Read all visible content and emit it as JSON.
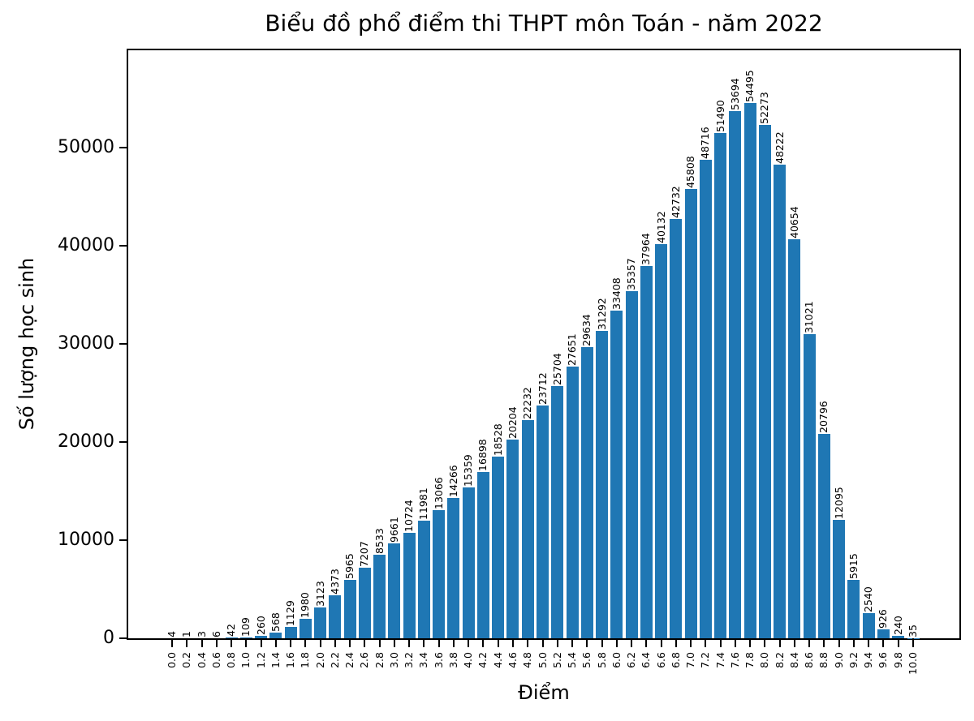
{
  "chart_data": {
    "type": "bar",
    "title": "Biểu đồ phổ điểm thi THPT môn Toán - năm 2022",
    "xlabel": "Điểm",
    "ylabel": "Số lượng học sinh",
    "categories": [
      "0.0",
      "0.2",
      "0.4",
      "0.6",
      "0.8",
      "1.0",
      "1.2",
      "1.4",
      "1.6",
      "1.8",
      "2.0",
      "2.2",
      "2.4",
      "2.6",
      "2.8",
      "3.0",
      "3.2",
      "3.4",
      "3.6",
      "3.8",
      "4.0",
      "4.2",
      "4.4",
      "4.6",
      "4.8",
      "5.0",
      "5.2",
      "5.4",
      "5.6",
      "5.8",
      "6.0",
      "6.2",
      "6.4",
      "6.6",
      "6.8",
      "7.0",
      "7.2",
      "7.4",
      "7.6",
      "7.8",
      "8.0",
      "8.2",
      "8.4",
      "8.6",
      "8.8",
      "9.0",
      "9.2",
      "9.4",
      "9.6",
      "9.8",
      "10.0"
    ],
    "values": [
      4,
      1,
      3,
      6,
      42,
      109,
      260,
      568,
      1129,
      1980,
      3123,
      4373,
      5965,
      7207,
      8533,
      9661,
      10724,
      11981,
      13066,
      14266,
      15359,
      16898,
      18528,
      20204,
      22232,
      23712,
      25704,
      27651,
      29634,
      31292,
      33408,
      35357,
      37964,
      40132,
      42732,
      45808,
      48716,
      51490,
      53694,
      54495,
      52273,
      48222,
      40654,
      31021,
      20796,
      12095,
      5915,
      2540,
      926,
      240,
      35
    ],
    "yticks": [
      0,
      10000,
      20000,
      30000,
      40000,
      50000
    ],
    "ylim": [
      0,
      59900
    ],
    "bar_color": "#1f77b4",
    "grid": false,
    "legend": null,
    "xtick_rotation": 90,
    "value_label_rotation": 90
  }
}
